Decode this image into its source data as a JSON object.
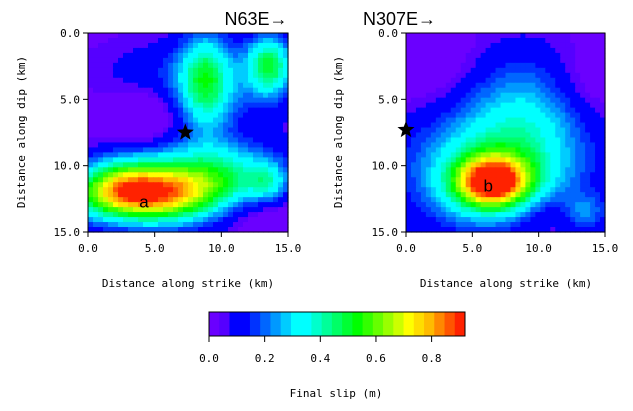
{
  "chart_data": [
    {
      "type": "heatmap",
      "heading": "N63E→",
      "xlabel": "Distance along strike (km)",
      "ylabel": "Distance along dip (km)",
      "xlim": [
        0,
        15
      ],
      "ylim": [
        0,
        15
      ],
      "y_inverted": true,
      "xticks": [
        "0.0",
        "5.0",
        "10.0",
        "15.0"
      ],
      "yticks": [
        "0.0",
        "5.0",
        "10.0",
        "15.0"
      ],
      "hypocenter": {
        "x": 7.3,
        "y": 7.5
      },
      "annotation": {
        "text": "a",
        "x": 4.2,
        "y": 12.7
      },
      "patches": [
        {
          "x": 3.8,
          "y": 12.3,
          "sx": 3.8,
          "sy": 1.4,
          "amp": 0.62
        },
        {
          "x": 2.5,
          "y": 11.0,
          "sx": 2.2,
          "sy": 1.4,
          "amp": 0.22
        },
        {
          "x": 7.5,
          "y": 11.5,
          "sx": 4.0,
          "sy": 2.0,
          "amp": 0.3
        },
        {
          "x": 10.2,
          "y": 10.3,
          "sx": 3.5,
          "sy": 1.6,
          "amp": 0.2
        },
        {
          "x": 8.8,
          "y": 3.6,
          "sx": 1.4,
          "sy": 2.6,
          "amp": 0.38
        },
        {
          "x": 13.6,
          "y": 2.4,
          "sx": 1.2,
          "sy": 1.6,
          "amp": 0.42
        },
        {
          "x": 10.0,
          "y": 4.0,
          "sx": 4.5,
          "sy": 2.5,
          "amp": 0.12
        },
        {
          "x": 4.5,
          "y": 3.0,
          "sx": 3.0,
          "sy": 1.5,
          "amp": 0.06
        },
        {
          "x": 13.5,
          "y": 11.3,
          "sx": 1.0,
          "sy": 1.0,
          "amp": 0.2
        }
      ],
      "lows": [
        {
          "x": 4.0,
          "y": 6.3,
          "sx": 2.0,
          "sy": 1.6,
          "amp": 0.12
        },
        {
          "x": 12.5,
          "y": 13.5,
          "sx": 2.5,
          "sy": 1.2,
          "amp": 0.1
        }
      ]
    },
    {
      "type": "heatmap",
      "heading": "N307E→",
      "xlabel": "Distance along strike (km)",
      "ylabel": "Distance along dip (km)",
      "xlim": [
        0,
        15
      ],
      "ylim": [
        0,
        15
      ],
      "y_inverted": true,
      "xticks": [
        "0.0",
        "5.0",
        "10.0",
        "15.0"
      ],
      "yticks": [
        "0.0",
        "5.0",
        "10.0",
        "15.0"
      ],
      "hypocenter": {
        "x": 0.0,
        "y": 7.3
      },
      "annotation": {
        "text": "b",
        "x": 6.2,
        "y": 11.5
      },
      "patches": [
        {
          "x": 6.5,
          "y": 11.3,
          "sx": 2.0,
          "sy": 1.4,
          "amp": 0.7
        },
        {
          "x": 6.5,
          "y": 10.5,
          "sx": 4.5,
          "sy": 3.0,
          "amp": 0.28
        },
        {
          "x": 9.0,
          "y": 6.0,
          "sx": 3.0,
          "sy": 3.2,
          "amp": 0.16
        },
        {
          "x": 7.5,
          "y": 8.5,
          "sx": 5.5,
          "sy": 5.0,
          "amp": 0.1
        },
        {
          "x": 13.5,
          "y": 13.5,
          "sx": 1.2,
          "sy": 1.0,
          "amp": 0.18
        }
      ],
      "lows": [
        {
          "x": 1.5,
          "y": 2.0,
          "sx": 2.5,
          "sy": 2.5,
          "amp": 0.1
        },
        {
          "x": 14.0,
          "y": 3.5,
          "sx": 2.0,
          "sy": 2.0,
          "amp": 0.08
        },
        {
          "x": 10.5,
          "y": 13.5,
          "sx": 2.5,
          "sy": 1.3,
          "amp": 0.1
        }
      ]
    }
  ],
  "colorbar": {
    "label": "Final slip (m)",
    "min": 0.0,
    "max": 0.92,
    "ticks": [
      "0.0",
      "0.2",
      "0.4",
      "0.6",
      "0.8"
    ],
    "colors": [
      "#6a00ff",
      "#5500ff",
      "#0000ff",
      "#0000ff",
      "#0033ff",
      "#0066ff",
      "#0099ff",
      "#00ccff",
      "#00ffff",
      "#00ffff",
      "#00ffcc",
      "#00ff99",
      "#00ff66",
      "#00ff33",
      "#00ff00",
      "#33ff00",
      "#66ff00",
      "#99ff00",
      "#ccff00",
      "#ffff00",
      "#ffdd00",
      "#ffbb00",
      "#ff8800",
      "#ff5500",
      "#ff2200"
    ]
  }
}
